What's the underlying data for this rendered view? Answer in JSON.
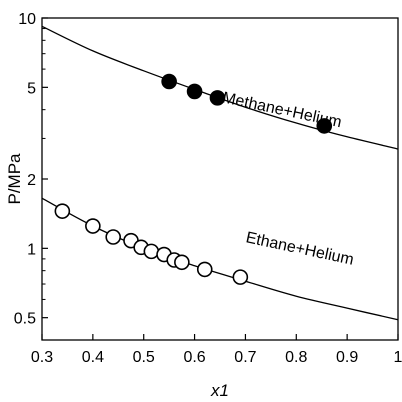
{
  "chart_data": {
    "type": "scatter",
    "title": "",
    "xlabel": "x1",
    "ylabel": "P/MPa",
    "xlim": [
      0.3,
      1.0
    ],
    "ylim": [
      0.4,
      10
    ],
    "y_scale": "log",
    "grid": false,
    "x_ticks": [
      0.3,
      0.4,
      0.5,
      0.6,
      0.7,
      0.8,
      0.9,
      1.0
    ],
    "x_tick_labels": [
      "0.3",
      "0.4",
      "0.5",
      "0.6",
      "0.7",
      "0.8",
      "0.9",
      "1"
    ],
    "y_ticks": [
      0.5,
      1,
      2,
      5,
      10
    ],
    "y_tick_labels": [
      "0.5",
      "1",
      "2",
      "5",
      "10"
    ],
    "series": [
      {
        "name": "Methane+Helium",
        "marker": "filled-circle",
        "points": [
          {
            "x": 0.55,
            "y": 5.3
          },
          {
            "x": 0.6,
            "y": 4.8
          },
          {
            "x": 0.645,
            "y": 4.5
          },
          {
            "x": 0.855,
            "y": 3.4
          }
        ],
        "model_curve": [
          {
            "x": 0.3,
            "y": 9.2
          },
          {
            "x": 0.4,
            "y": 7.2
          },
          {
            "x": 0.5,
            "y": 5.9
          },
          {
            "x": 0.6,
            "y": 4.9
          },
          {
            "x": 0.7,
            "y": 4.1
          },
          {
            "x": 0.8,
            "y": 3.5
          },
          {
            "x": 0.9,
            "y": 3.05
          },
          {
            "x": 1.0,
            "y": 2.7
          }
        ]
      },
      {
        "name": "Ethane+Helium",
        "marker": "open-circle",
        "points": [
          {
            "x": 0.34,
            "y": 1.45
          },
          {
            "x": 0.4,
            "y": 1.25
          },
          {
            "x": 0.44,
            "y": 1.12
          },
          {
            "x": 0.475,
            "y": 1.08
          },
          {
            "x": 0.495,
            "y": 1.01
          },
          {
            "x": 0.515,
            "y": 0.97
          },
          {
            "x": 0.54,
            "y": 0.94
          },
          {
            "x": 0.56,
            "y": 0.89
          },
          {
            "x": 0.575,
            "y": 0.87
          },
          {
            "x": 0.62,
            "y": 0.81
          },
          {
            "x": 0.69,
            "y": 0.75
          }
        ],
        "model_curve": [
          {
            "x": 0.3,
            "y": 1.65
          },
          {
            "x": 0.4,
            "y": 1.25
          },
          {
            "x": 0.5,
            "y": 1.0
          },
          {
            "x": 0.6,
            "y": 0.84
          },
          {
            "x": 0.7,
            "y": 0.72
          },
          {
            "x": 0.8,
            "y": 0.62
          },
          {
            "x": 0.9,
            "y": 0.55
          },
          {
            "x": 1.0,
            "y": 0.49
          }
        ]
      }
    ],
    "annotations": [
      {
        "text": "Methane+Helium",
        "x": 0.77,
        "y": 3.8
      },
      {
        "text": "Ethane+Helium",
        "x": 0.805,
        "y": 0.95
      }
    ]
  }
}
